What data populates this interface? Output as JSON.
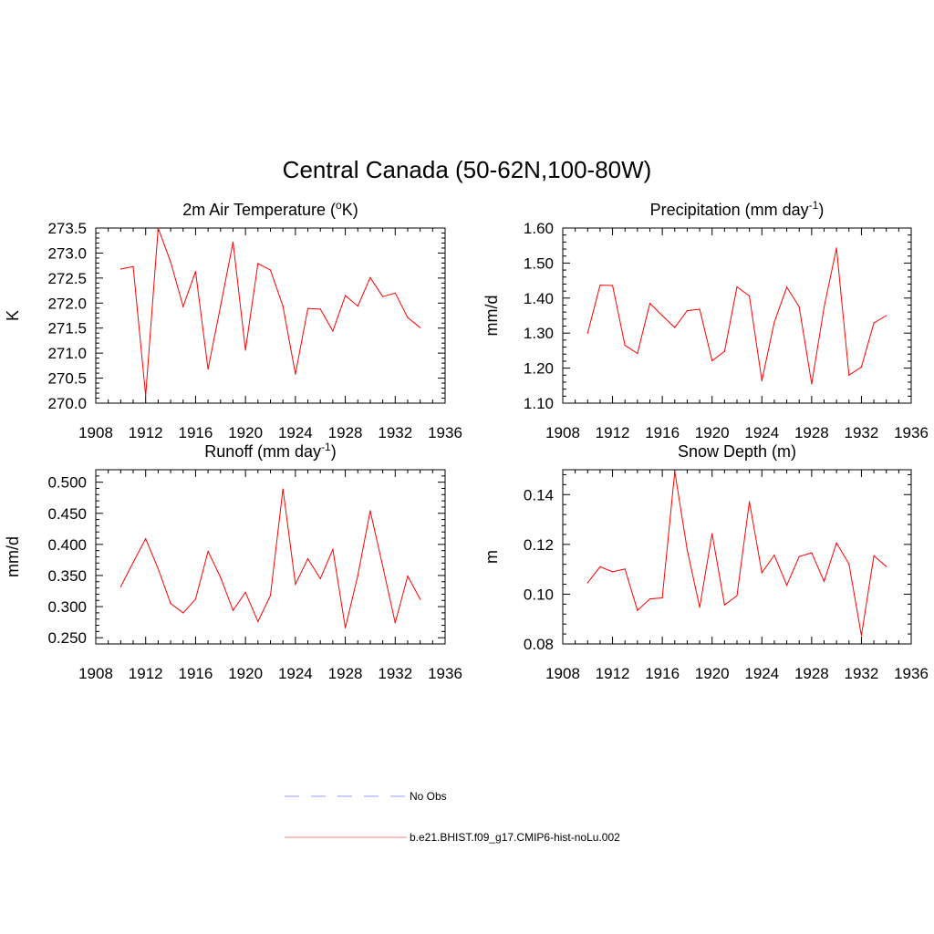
{
  "title": "Central Canada (50-62N,100-80W)",
  "legend": {
    "items": [
      {
        "label": "No Obs",
        "color": "#aab0ff",
        "style": "dashed"
      },
      {
        "label": "b.e21.BHIST.f09_g17.CMIP6-hist-noLu.002",
        "color": "#ff9a9a",
        "style": "solid"
      }
    ]
  },
  "chart_data": [
    {
      "type": "line",
      "title": "2m Air Temperature (°K)",
      "title_main": "2m Air Temperature (",
      "title_sup": "o",
      "title_after": "K)",
      "ylabel": "K",
      "xlim": [
        1908,
        1936
      ],
      "ylim": [
        270.0,
        273.5
      ],
      "x_ticks": [
        1908,
        1912,
        1916,
        1920,
        1924,
        1928,
        1932,
        1936
      ],
      "y_ticks": [
        "270.0",
        "270.5",
        "271.0",
        "271.5",
        "272.0",
        "272.5",
        "273.0",
        "273.5"
      ],
      "color": "#ff0000",
      "x": [
        1910,
        1911,
        1912,
        1913,
        1914,
        1915,
        1916,
        1917,
        1918,
        1919,
        1920,
        1921,
        1922,
        1923,
        1924,
        1925,
        1926,
        1927,
        1928,
        1929,
        1930,
        1931,
        1932,
        1933,
        1934
      ],
      "values": [
        272.68,
        272.73,
        270.15,
        273.5,
        272.82,
        271.93,
        272.63,
        270.68,
        271.94,
        273.22,
        271.06,
        272.79,
        272.66,
        271.94,
        270.58,
        271.89,
        271.88,
        271.44,
        272.15,
        271.94,
        272.51,
        272.13,
        272.2,
        271.71,
        271.51
      ]
    },
    {
      "type": "line",
      "title": "Precipitation (mm day-1)",
      "title_main": "Precipitation (mm day",
      "title_sup": "-1",
      "title_after": ")",
      "ylabel": "mm/d",
      "xlim": [
        1908,
        1936
      ],
      "ylim": [
        1.1,
        1.6
      ],
      "x_ticks": [
        1908,
        1912,
        1916,
        1920,
        1924,
        1928,
        1932,
        1936
      ],
      "y_ticks": [
        "1.10",
        "1.20",
        "1.30",
        "1.40",
        "1.50",
        "1.60"
      ],
      "color": "#ff0000",
      "x": [
        1910,
        1911,
        1912,
        1913,
        1914,
        1915,
        1916,
        1917,
        1918,
        1919,
        1920,
        1921,
        1922,
        1923,
        1924,
        1925,
        1926,
        1927,
        1928,
        1929,
        1930,
        1931,
        1932,
        1933,
        1934
      ],
      "values": [
        1.3,
        1.437,
        1.436,
        1.265,
        1.242,
        1.385,
        1.35,
        1.316,
        1.364,
        1.368,
        1.221,
        1.248,
        1.432,
        1.406,
        1.164,
        1.331,
        1.431,
        1.375,
        1.155,
        1.374,
        1.543,
        1.18,
        1.203,
        1.329,
        1.35
      ]
    },
    {
      "type": "line",
      "title": "Runoff (mm day-1)",
      "title_main": "Runoff (mm day",
      "title_sup": "-1",
      "title_after": ")",
      "ylabel": "mm/d",
      "xlim": [
        1908,
        1936
      ],
      "ylim": [
        0.24,
        0.52
      ],
      "x_ticks": [
        1908,
        1912,
        1916,
        1920,
        1924,
        1928,
        1932,
        1936
      ],
      "y_ticks": [
        "0.250",
        "0.300",
        "0.350",
        "0.400",
        "0.450",
        "0.500"
      ],
      "color": "#ff0000",
      "x": [
        1910,
        1911,
        1912,
        1913,
        1914,
        1915,
        1916,
        1917,
        1918,
        1919,
        1920,
        1921,
        1922,
        1923,
        1924,
        1925,
        1926,
        1927,
        1928,
        1929,
        1930,
        1931,
        1932,
        1933,
        1934
      ],
      "values": [
        0.332,
        0.371,
        0.409,
        0.361,
        0.305,
        0.29,
        0.312,
        0.389,
        0.347,
        0.294,
        0.323,
        0.276,
        0.318,
        0.489,
        0.336,
        0.377,
        0.345,
        0.392,
        0.266,
        0.35,
        0.454,
        0.365,
        0.274,
        0.349,
        0.312
      ]
    },
    {
      "type": "line",
      "title": "Snow Depth (m)",
      "title_main": "Snow Depth (m)",
      "title_sup": "",
      "title_after": "",
      "ylabel": "m",
      "xlim": [
        1908,
        1936
      ],
      "ylim": [
        0.08,
        0.15
      ],
      "x_ticks": [
        1908,
        1912,
        1916,
        1920,
        1924,
        1928,
        1932,
        1936
      ],
      "y_ticks": [
        "0.08",
        "0.10",
        "0.12",
        "0.14"
      ],
      "color": "#ff0000",
      "x": [
        1910,
        1911,
        1912,
        1913,
        1914,
        1915,
        1916,
        1917,
        1918,
        1919,
        1920,
        1921,
        1922,
        1923,
        1924,
        1925,
        1926,
        1927,
        1928,
        1929,
        1930,
        1931,
        1932,
        1933,
        1934
      ],
      "values": [
        0.1046,
        0.111,
        0.109,
        0.1101,
        0.0935,
        0.0981,
        0.0985,
        0.1493,
        0.1179,
        0.0947,
        0.1243,
        0.0957,
        0.0994,
        0.1372,
        0.1086,
        0.1157,
        0.1036,
        0.1151,
        0.1166,
        0.1051,
        0.1206,
        0.1121,
        0.0834,
        0.1154,
        0.1111
      ]
    }
  ]
}
